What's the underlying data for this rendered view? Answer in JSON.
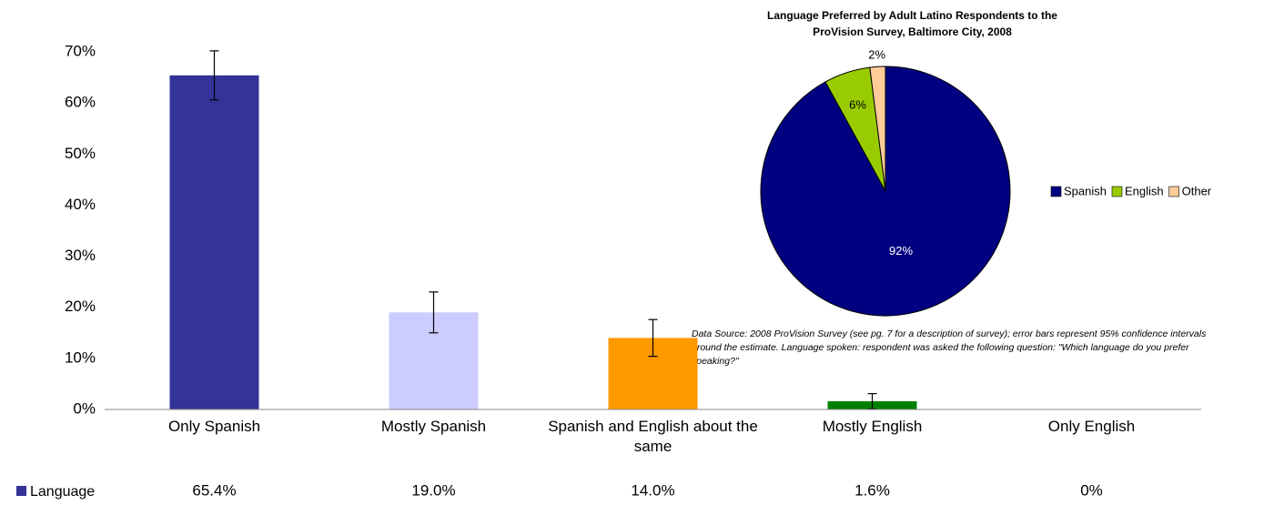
{
  "chart_data": [
    {
      "type": "bar",
      "categories": [
        "Only Spanish",
        "Mostly Spanish",
        "Spanish and English about the same",
        "Mostly English",
        "Only English"
      ],
      "series": [
        {
          "name": "Language",
          "color": "#333399",
          "values": [
            65.4,
            19.0,
            14.0,
            1.6,
            0
          ],
          "value_labels": [
            "65.4%",
            "19.0%",
            "14.0%",
            "1.6%",
            "0%"
          ],
          "colors": [
            "#333399",
            "#ccccff",
            "#ff9900",
            "#008000",
            "#808080"
          ],
          "errors": [
            4.8,
            4.0,
            3.6,
            1.5,
            null
          ]
        }
      ],
      "ylim": [
        0,
        70
      ],
      "yticks": [
        {
          "value": 0,
          "label": "0%"
        },
        {
          "value": 10,
          "label": "10%"
        },
        {
          "value": 20,
          "label": "20%"
        },
        {
          "value": 30,
          "label": "30%"
        },
        {
          "value": 40,
          "label": "40%"
        },
        {
          "value": 50,
          "label": "50%"
        },
        {
          "value": 60,
          "label": "60%"
        },
        {
          "value": 70,
          "label": "70%"
        }
      ],
      "grid": false,
      "note": "Data Source: 2008 ProVision Survey (see pg. 7 for a description of survey); error bars represent 95% confidence intervals around the estimate. Language spoken: respondent was asked the following question: \"Which language do you prefer speaking?\""
    },
    {
      "type": "pie",
      "title": "Language Preferred by Adult Latino Respondents to the ProVision Survey, Baltimore City, 2008",
      "categories": [
        "Spanish",
        "English",
        "Other"
      ],
      "values": [
        92,
        6,
        2
      ],
      "value_labels": [
        "92%",
        "6%",
        "2%"
      ],
      "colors": [
        "#000080",
        "#99cc00",
        "#ffcc99"
      ],
      "legend": "right"
    }
  ]
}
